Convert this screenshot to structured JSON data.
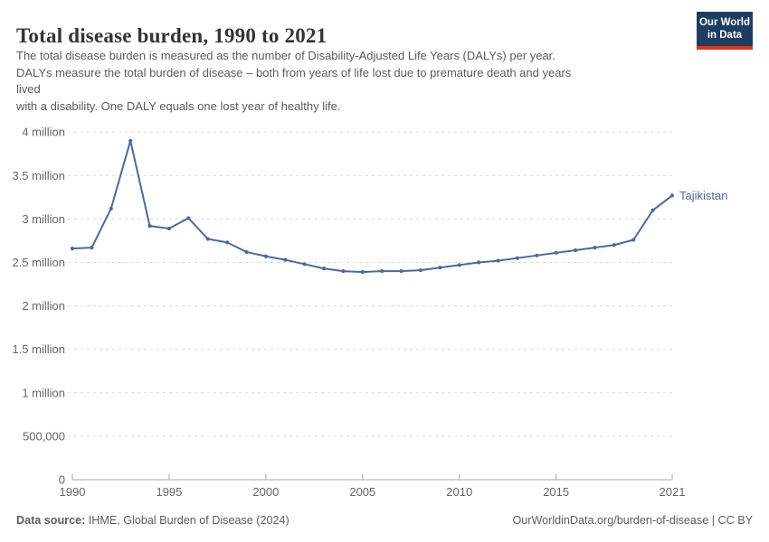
{
  "header": {
    "title": "Total disease burden, 1990 to 2021",
    "subtitle_lines": [
      "The total disease burden is measured as the number of Disability-Adjusted Life Years (DALYs) per year.",
      "DALYs measure the total burden of disease – both from years of life lost due to premature death and years",
      "lived",
      "with a disability. One DALY equals one lost year of healthy life."
    ],
    "logo": {
      "line1": "Our World",
      "line2": "in Data"
    }
  },
  "chart_data": {
    "type": "line",
    "title": "Total disease burden, 1990 to 2021",
    "unit": "DALYs per year",
    "entity_label": "Tajikistan",
    "xlim": [
      1990,
      2021
    ],
    "ylim_million": [
      0,
      4
    ],
    "grid": "horizontal dashed",
    "legend_position": "end-of-line label",
    "x_ticks": [
      1990,
      1995,
      2000,
      2005,
      2010,
      2015,
      2021
    ],
    "y_ticks": [
      {
        "value": 0,
        "label": "0"
      },
      {
        "value": 0.5,
        "label": "500,000"
      },
      {
        "value": 1,
        "label": "1 million"
      },
      {
        "value": 1.5,
        "label": "1.5 million"
      },
      {
        "value": 2,
        "label": "2 million"
      },
      {
        "value": 2.5,
        "label": "2.5 million"
      },
      {
        "value": 3,
        "label": "3 million"
      },
      {
        "value": 3.5,
        "label": "3.5 million"
      },
      {
        "value": 4,
        "label": "4 million"
      }
    ],
    "series": [
      {
        "name": "Tajikistan",
        "color": "#4C6A9C",
        "x": [
          1990,
          1991,
          1992,
          1993,
          1994,
          1995,
          1996,
          1997,
          1998,
          1999,
          2000,
          2001,
          2002,
          2003,
          2004,
          2005,
          2006,
          2007,
          2008,
          2009,
          2010,
          2011,
          2012,
          2013,
          2014,
          2015,
          2016,
          2017,
          2018,
          2019,
          2020,
          2021
        ],
        "values_million_dalys": [
          2.66,
          2.67,
          3.12,
          3.9,
          2.92,
          2.89,
          3.01,
          2.77,
          2.73,
          2.62,
          2.57,
          2.53,
          2.48,
          2.43,
          2.4,
          2.39,
          2.4,
          2.4,
          2.41,
          2.44,
          2.47,
          2.5,
          2.52,
          2.55,
          2.58,
          2.61,
          2.64,
          2.67,
          2.7,
          2.76,
          3.1,
          3.27
        ]
      }
    ]
  },
  "footer": {
    "source_prefix": "Data source:",
    "source_text": " IHME, Global Burden of Disease (2024)",
    "credit": "OurWorldinData.org/burden-of-disease | CC BY"
  },
  "colors": {
    "line": "#4C6A9C",
    "grid": "#d9d9d9",
    "axis": "#a9a9a9",
    "tick_label": "#666666",
    "logo_bg": "#1d3d63",
    "logo_accent": "#d23a2e"
  }
}
